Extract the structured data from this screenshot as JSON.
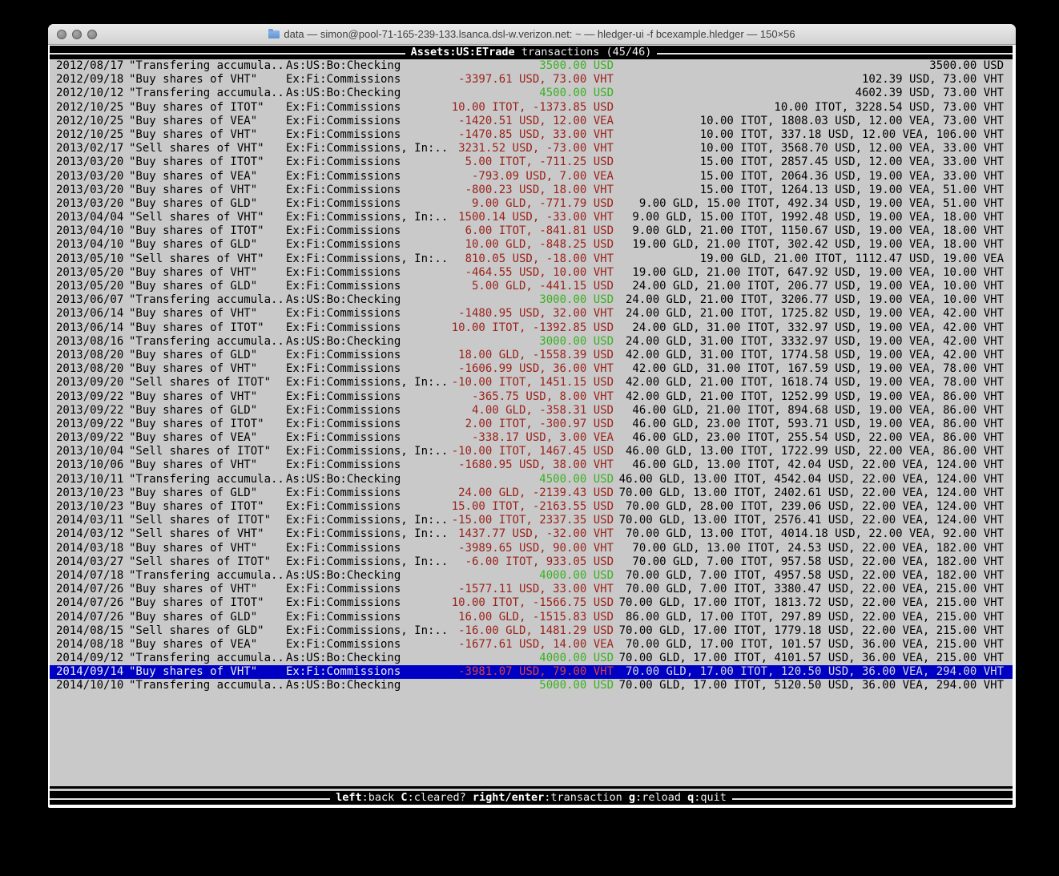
{
  "window": {
    "title": "data — simon@pool-71-165-239-133.lsanca.dsl-w.verizon.net: ~ — hledger-ui -f bcexample.hledger — 150×56"
  },
  "header": {
    "title_bold": "Assets:US:ETrade",
    "title_rest": "transactions (45/46)"
  },
  "footer": {
    "keys": [
      {
        "key": "left",
        "label": "back"
      },
      {
        "key": "C",
        "label": "cleared?"
      },
      {
        "key": "right/enter",
        "label": "transaction"
      },
      {
        "key": "g",
        "label": "reload"
      },
      {
        "key": "q",
        "label": "quit"
      }
    ]
  },
  "colors": {
    "terminal_bg": "#c9c9c9",
    "change_negative_red": "#9b221b",
    "deposit_green": "#3cb022",
    "selected_row_bg": "#0000c4",
    "bar_bg": "#000000"
  },
  "transactions": [
    {
      "date": "2012/08/17",
      "description": "\"Transfering accumula..",
      "account": "As:US:Bo:Checking",
      "change": "3500.00 USD",
      "change_color": "green",
      "balance": "3500.00 USD"
    },
    {
      "date": "2012/09/18",
      "description": "\"Buy shares of VHT\"",
      "account": "Ex:Fi:Commissions",
      "change": "-3397.61 USD, 73.00 VHT",
      "change_color": "red",
      "balance": "102.39 USD, 73.00 VHT"
    },
    {
      "date": "2012/10/12",
      "description": "\"Transfering accumula..",
      "account": "As:US:Bo:Checking",
      "change": "4500.00 USD",
      "change_color": "green",
      "balance": "4602.39 USD, 73.00 VHT"
    },
    {
      "date": "2012/10/25",
      "description": "\"Buy shares of ITOT\"",
      "account": "Ex:Fi:Commissions",
      "change": "10.00 ITOT, -1373.85 USD",
      "change_color": "red",
      "balance": "10.00 ITOT, 3228.54 USD, 73.00 VHT"
    },
    {
      "date": "2012/10/25",
      "description": "\"Buy shares of VEA\"",
      "account": "Ex:Fi:Commissions",
      "change": "-1420.51 USD, 12.00 VEA",
      "change_color": "red",
      "balance": "10.00 ITOT, 1808.03 USD, 12.00 VEA, 73.00 VHT"
    },
    {
      "date": "2012/10/25",
      "description": "\"Buy shares of VHT\"",
      "account": "Ex:Fi:Commissions",
      "change": "-1470.85 USD, 33.00 VHT",
      "change_color": "red",
      "balance": "10.00 ITOT, 337.18 USD, 12.00 VEA, 106.00 VHT"
    },
    {
      "date": "2013/02/17",
      "description": "\"Sell shares of VHT\"",
      "account": "Ex:Fi:Commissions, In:..",
      "change": "3231.52 USD, -73.00 VHT",
      "change_color": "red",
      "balance": "10.00 ITOT, 3568.70 USD, 12.00 VEA, 33.00 VHT"
    },
    {
      "date": "2013/03/20",
      "description": "\"Buy shares of ITOT\"",
      "account": "Ex:Fi:Commissions",
      "change": "5.00 ITOT, -711.25 USD",
      "change_color": "red",
      "balance": "15.00 ITOT, 2857.45 USD, 12.00 VEA, 33.00 VHT"
    },
    {
      "date": "2013/03/20",
      "description": "\"Buy shares of VEA\"",
      "account": "Ex:Fi:Commissions",
      "change": "-793.09 USD, 7.00 VEA",
      "change_color": "red",
      "balance": "15.00 ITOT, 2064.36 USD, 19.00 VEA, 33.00 VHT"
    },
    {
      "date": "2013/03/20",
      "description": "\"Buy shares of VHT\"",
      "account": "Ex:Fi:Commissions",
      "change": "-800.23 USD, 18.00 VHT",
      "change_color": "red",
      "balance": "15.00 ITOT, 1264.13 USD, 19.00 VEA, 51.00 VHT"
    },
    {
      "date": "2013/03/20",
      "description": "\"Buy shares of GLD\"",
      "account": "Ex:Fi:Commissions",
      "change": "9.00 GLD, -771.79 USD",
      "change_color": "red",
      "balance": "9.00 GLD, 15.00 ITOT, 492.34 USD, 19.00 VEA, 51.00 VHT"
    },
    {
      "date": "2013/04/04",
      "description": "\"Sell shares of VHT\"",
      "account": "Ex:Fi:Commissions, In:..",
      "change": "1500.14 USD, -33.00 VHT",
      "change_color": "red",
      "balance": "9.00 GLD, 15.00 ITOT, 1992.48 USD, 19.00 VEA, 18.00 VHT"
    },
    {
      "date": "2013/04/10",
      "description": "\"Buy shares of ITOT\"",
      "account": "Ex:Fi:Commissions",
      "change": "6.00 ITOT, -841.81 USD",
      "change_color": "red",
      "balance": "9.00 GLD, 21.00 ITOT, 1150.67 USD, 19.00 VEA, 18.00 VHT"
    },
    {
      "date": "2013/04/10",
      "description": "\"Buy shares of GLD\"",
      "account": "Ex:Fi:Commissions",
      "change": "10.00 GLD, -848.25 USD",
      "change_color": "red",
      "balance": "19.00 GLD, 21.00 ITOT, 302.42 USD, 19.00 VEA, 18.00 VHT"
    },
    {
      "date": "2013/05/10",
      "description": "\"Sell shares of VHT\"",
      "account": "Ex:Fi:Commissions, In:..",
      "change": "810.05 USD, -18.00 VHT",
      "change_color": "red",
      "balance": "19.00 GLD, 21.00 ITOT, 1112.47 USD, 19.00 VEA"
    },
    {
      "date": "2013/05/20",
      "description": "\"Buy shares of VHT\"",
      "account": "Ex:Fi:Commissions",
      "change": "-464.55 USD, 10.00 VHT",
      "change_color": "red",
      "balance": "19.00 GLD, 21.00 ITOT, 647.92 USD, 19.00 VEA, 10.00 VHT"
    },
    {
      "date": "2013/05/20",
      "description": "\"Buy shares of GLD\"",
      "account": "Ex:Fi:Commissions",
      "change": "5.00 GLD, -441.15 USD",
      "change_color": "red",
      "balance": "24.00 GLD, 21.00 ITOT, 206.77 USD, 19.00 VEA, 10.00 VHT"
    },
    {
      "date": "2013/06/07",
      "description": "\"Transfering accumula..",
      "account": "As:US:Bo:Checking",
      "change": "3000.00 USD",
      "change_color": "green",
      "balance": "24.00 GLD, 21.00 ITOT, 3206.77 USD, 19.00 VEA, 10.00 VHT"
    },
    {
      "date": "2013/06/14",
      "description": "\"Buy shares of VHT\"",
      "account": "Ex:Fi:Commissions",
      "change": "-1480.95 USD, 32.00 VHT",
      "change_color": "red",
      "balance": "24.00 GLD, 21.00 ITOT, 1725.82 USD, 19.00 VEA, 42.00 VHT"
    },
    {
      "date": "2013/06/14",
      "description": "\"Buy shares of ITOT\"",
      "account": "Ex:Fi:Commissions",
      "change": "10.00 ITOT, -1392.85 USD",
      "change_color": "red",
      "balance": "24.00 GLD, 31.00 ITOT, 332.97 USD, 19.00 VEA, 42.00 VHT"
    },
    {
      "date": "2013/08/16",
      "description": "\"Transfering accumula..",
      "account": "As:US:Bo:Checking",
      "change": "3000.00 USD",
      "change_color": "green",
      "balance": "24.00 GLD, 31.00 ITOT, 3332.97 USD, 19.00 VEA, 42.00 VHT"
    },
    {
      "date": "2013/08/20",
      "description": "\"Buy shares of GLD\"",
      "account": "Ex:Fi:Commissions",
      "change": "18.00 GLD, -1558.39 USD",
      "change_color": "red",
      "balance": "42.00 GLD, 31.00 ITOT, 1774.58 USD, 19.00 VEA, 42.00 VHT"
    },
    {
      "date": "2013/08/20",
      "description": "\"Buy shares of VHT\"",
      "account": "Ex:Fi:Commissions",
      "change": "-1606.99 USD, 36.00 VHT",
      "change_color": "red",
      "balance": "42.00 GLD, 31.00 ITOT, 167.59 USD, 19.00 VEA, 78.00 VHT"
    },
    {
      "date": "2013/09/20",
      "description": "\"Sell shares of ITOT\"",
      "account": "Ex:Fi:Commissions, In:..",
      "change": "-10.00 ITOT, 1451.15 USD",
      "change_color": "red",
      "balance": "42.00 GLD, 21.00 ITOT, 1618.74 USD, 19.00 VEA, 78.00 VHT"
    },
    {
      "date": "2013/09/22",
      "description": "\"Buy shares of VHT\"",
      "account": "Ex:Fi:Commissions",
      "change": "-365.75 USD, 8.00 VHT",
      "change_color": "red",
      "balance": "42.00 GLD, 21.00 ITOT, 1252.99 USD, 19.00 VEA, 86.00 VHT"
    },
    {
      "date": "2013/09/22",
      "description": "\"Buy shares of GLD\"",
      "account": "Ex:Fi:Commissions",
      "change": "4.00 GLD, -358.31 USD",
      "change_color": "red",
      "balance": "46.00 GLD, 21.00 ITOT, 894.68 USD, 19.00 VEA, 86.00 VHT"
    },
    {
      "date": "2013/09/22",
      "description": "\"Buy shares of ITOT\"",
      "account": "Ex:Fi:Commissions",
      "change": "2.00 ITOT, -300.97 USD",
      "change_color": "red",
      "balance": "46.00 GLD, 23.00 ITOT, 593.71 USD, 19.00 VEA, 86.00 VHT"
    },
    {
      "date": "2013/09/22",
      "description": "\"Buy shares of VEA\"",
      "account": "Ex:Fi:Commissions",
      "change": "-338.17 USD, 3.00 VEA",
      "change_color": "red",
      "balance": "46.00 GLD, 23.00 ITOT, 255.54 USD, 22.00 VEA, 86.00 VHT"
    },
    {
      "date": "2013/10/04",
      "description": "\"Sell shares of ITOT\"",
      "account": "Ex:Fi:Commissions, In:..",
      "change": "-10.00 ITOT, 1467.45 USD",
      "change_color": "red",
      "balance": "46.00 GLD, 13.00 ITOT, 1722.99 USD, 22.00 VEA, 86.00 VHT"
    },
    {
      "date": "2013/10/06",
      "description": "\"Buy shares of VHT\"",
      "account": "Ex:Fi:Commissions",
      "change": "-1680.95 USD, 38.00 VHT",
      "change_color": "red",
      "balance": "46.00 GLD, 13.00 ITOT, 42.04 USD, 22.00 VEA, 124.00 VHT"
    },
    {
      "date": "2013/10/11",
      "description": "\"Transfering accumula..",
      "account": "As:US:Bo:Checking",
      "change": "4500.00 USD",
      "change_color": "green",
      "balance": "46.00 GLD, 13.00 ITOT, 4542.04 USD, 22.00 VEA, 124.00 VHT"
    },
    {
      "date": "2013/10/23",
      "description": "\"Buy shares of GLD\"",
      "account": "Ex:Fi:Commissions",
      "change": "24.00 GLD, -2139.43 USD",
      "change_color": "red",
      "balance": "70.00 GLD, 13.00 ITOT, 2402.61 USD, 22.00 VEA, 124.00 VHT"
    },
    {
      "date": "2013/10/23",
      "description": "\"Buy shares of ITOT\"",
      "account": "Ex:Fi:Commissions",
      "change": "15.00 ITOT, -2163.55 USD",
      "change_color": "red",
      "balance": "70.00 GLD, 28.00 ITOT, 239.06 USD, 22.00 VEA, 124.00 VHT"
    },
    {
      "date": "2014/03/11",
      "description": "\"Sell shares of ITOT\"",
      "account": "Ex:Fi:Commissions, In:..",
      "change": "-15.00 ITOT, 2337.35 USD",
      "change_color": "red",
      "balance": "70.00 GLD, 13.00 ITOT, 2576.41 USD, 22.00 VEA, 124.00 VHT"
    },
    {
      "date": "2014/03/12",
      "description": "\"Sell shares of VHT\"",
      "account": "Ex:Fi:Commissions, In:..",
      "change": "1437.77 USD, -32.00 VHT",
      "change_color": "red",
      "balance": "70.00 GLD, 13.00 ITOT, 4014.18 USD, 22.00 VEA, 92.00 VHT"
    },
    {
      "date": "2014/03/18",
      "description": "\"Buy shares of VHT\"",
      "account": "Ex:Fi:Commissions",
      "change": "-3989.65 USD, 90.00 VHT",
      "change_color": "red",
      "balance": "70.00 GLD, 13.00 ITOT, 24.53 USD, 22.00 VEA, 182.00 VHT"
    },
    {
      "date": "2014/03/27",
      "description": "\"Sell shares of ITOT\"",
      "account": "Ex:Fi:Commissions, In:..",
      "change": "-6.00 ITOT, 933.05 USD",
      "change_color": "red",
      "balance": "70.00 GLD, 7.00 ITOT, 957.58 USD, 22.00 VEA, 182.00 VHT"
    },
    {
      "date": "2014/07/18",
      "description": "\"Transfering accumula..",
      "account": "As:US:Bo:Checking",
      "change": "4000.00 USD",
      "change_color": "green",
      "balance": "70.00 GLD, 7.00 ITOT, 4957.58 USD, 22.00 VEA, 182.00 VHT"
    },
    {
      "date": "2014/07/26",
      "description": "\"Buy shares of VHT\"",
      "account": "Ex:Fi:Commissions",
      "change": "-1577.11 USD, 33.00 VHT",
      "change_color": "red",
      "balance": "70.00 GLD, 7.00 ITOT, 3380.47 USD, 22.00 VEA, 215.00 VHT"
    },
    {
      "date": "2014/07/26",
      "description": "\"Buy shares of ITOT\"",
      "account": "Ex:Fi:Commissions",
      "change": "10.00 ITOT, -1566.75 USD",
      "change_color": "red",
      "balance": "70.00 GLD, 17.00 ITOT, 1813.72 USD, 22.00 VEA, 215.00 VHT"
    },
    {
      "date": "2014/07/26",
      "description": "\"Buy shares of GLD\"",
      "account": "Ex:Fi:Commissions",
      "change": "16.00 GLD, -1515.83 USD",
      "change_color": "red",
      "balance": "86.00 GLD, 17.00 ITOT, 297.89 USD, 22.00 VEA, 215.00 VHT"
    },
    {
      "date": "2014/08/15",
      "description": "\"Sell shares of GLD\"",
      "account": "Ex:Fi:Commissions, In:..",
      "change": "-16.00 GLD, 1481.29 USD",
      "change_color": "red",
      "balance": "70.00 GLD, 17.00 ITOT, 1779.18 USD, 22.00 VEA, 215.00 VHT"
    },
    {
      "date": "2014/08/18",
      "description": "\"Buy shares of VEA\"",
      "account": "Ex:Fi:Commissions",
      "change": "-1677.61 USD, 14.00 VEA",
      "change_color": "red",
      "balance": "70.00 GLD, 17.00 ITOT, 101.57 USD, 36.00 VEA, 215.00 VHT"
    },
    {
      "date": "2014/09/12",
      "description": "\"Transfering accumula..",
      "account": "As:US:Bo:Checking",
      "change": "4000.00 USD",
      "change_color": "green",
      "balance": "70.00 GLD, 17.00 ITOT, 4101.57 USD, 36.00 VEA, 215.00 VHT"
    },
    {
      "date": "2014/09/14",
      "description": "\"Buy shares of VHT\"",
      "account": "Ex:Fi:Commissions",
      "change": "-3981.07 USD, 79.00 VHT",
      "change_color": "red",
      "balance": "70.00 GLD, 17.00 ITOT, 120.50 USD, 36.00 VEA, 294.00 VHT",
      "selected": true
    },
    {
      "date": "2014/10/10",
      "description": "\"Transfering accumula..",
      "account": "As:US:Bo:Checking",
      "change": "5000.00 USD",
      "change_color": "green",
      "balance": "70.00 GLD, 17.00 ITOT, 5120.50 USD, 36.00 VEA, 294.00 VHT"
    }
  ]
}
